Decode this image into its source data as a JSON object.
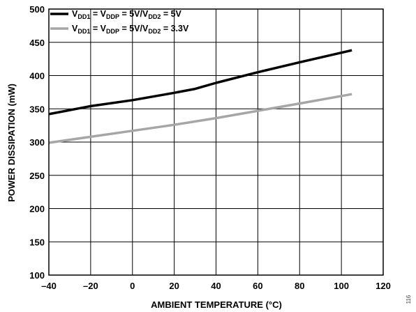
{
  "chart_data": {
    "type": "line",
    "xlabel": "AMBIENT TEMPERATURE (°C)",
    "ylabel": "POWER DISSIPATION (mW)",
    "xlim": [
      -40,
      120
    ],
    "ylim": [
      100,
      500
    ],
    "x_ticks": [
      "–40",
      "–20",
      "0",
      "20",
      "40",
      "60",
      "80",
      "100",
      "120"
    ],
    "x_tick_values": [
      -40,
      -20,
      0,
      20,
      40,
      60,
      80,
      100,
      120
    ],
    "y_ticks": [
      "100",
      "150",
      "200",
      "250",
      "300",
      "350",
      "400",
      "450",
      "500"
    ],
    "y_tick_values": [
      100,
      150,
      200,
      250,
      300,
      350,
      400,
      450,
      500
    ],
    "grid": true,
    "legend_position": "top-left",
    "series": [
      {
        "legend": {
          "p1": "V",
          "s1": "DD1",
          "p2": " = V",
          "s2": "DDP",
          "p3": " = 5V/V",
          "s3": "DD2",
          "p4": " = 5V"
        },
        "color": "#000000",
        "x": [
          -40,
          -20,
          0,
          20,
          30,
          40,
          60,
          80,
          105
        ],
        "y": [
          342,
          354,
          363,
          374,
          380,
          389,
          405,
          420,
          438
        ]
      },
      {
        "legend": {
          "p1": "V",
          "s1": "DD1",
          "p2": " = V",
          "s2": "DDP",
          "p3": " = 5V/V",
          "s3": "DD2",
          "p4": " = 3.3V"
        },
        "color": "#a6a6a6",
        "x": [
          -40,
          -20,
          0,
          20,
          40,
          60,
          80,
          105
        ],
        "y": [
          299,
          308,
          317,
          326,
          336,
          347,
          358,
          372
        ]
      }
    ]
  },
  "figure_id": "116"
}
